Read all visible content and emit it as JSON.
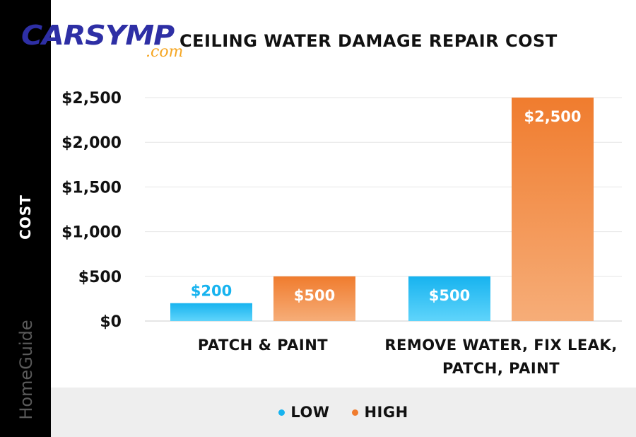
{
  "logo": {
    "main": "CARSYMP",
    "sub": ".com"
  },
  "watermark": "HomeGuide",
  "colors": {
    "low_top": "#17b3ef",
    "low_bottom": "#5fd4fb",
    "high_top": "#f07c2e",
    "high_bottom": "#f6ad78",
    "grid": "#e6e6e6",
    "axis": "#cccccc"
  },
  "chart_data": {
    "type": "bar",
    "title": "CEILING WATER DAMAGE REPAIR COST",
    "ylabel": "COST",
    "xlabel": "",
    "categories": [
      [
        "PATCH & PAINT"
      ],
      [
        "REMOVE WATER, FIX LEAK,",
        "PATCH, PAINT"
      ]
    ],
    "series": [
      {
        "name": "LOW",
        "values": [
          200,
          500
        ],
        "labels": [
          "$200",
          "$500"
        ]
      },
      {
        "name": "HIGH",
        "values": [
          500,
          2500
        ],
        "labels": [
          "$500",
          "$2,500"
        ]
      }
    ],
    "ylim": [
      0,
      2500
    ],
    "yticks": [
      0,
      500,
      1000,
      1500,
      2000,
      2500
    ],
    "ytick_labels": [
      "$0",
      "$500",
      "$1,000",
      "$1,500",
      "$2,000",
      "$2,500"
    ],
    "grid": true,
    "legend": "bottom-center"
  }
}
